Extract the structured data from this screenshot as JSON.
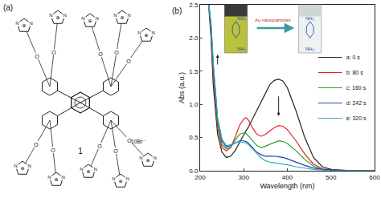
{
  "chart_data": {
    "type": "line",
    "annotations": {
      "panel_label": "(b)",
      "before": [
        "NO₂",
        "NH₂"
      ],
      "process": "Au nanoparticles",
      "after": [
        "NH₂",
        "NH₂"
      ]
    },
    "x_label": "Wavelength (nm)",
    "y_label": "Abs (a.u.)",
    "x": [
      220,
      225,
      230,
      240,
      250,
      260,
      270,
      280,
      290,
      300,
      305,
      310,
      320,
      330,
      340,
      350,
      360,
      370,
      380,
      390,
      400,
      420,
      440,
      460,
      480,
      500,
      550,
      600
    ],
    "series": [
      {
        "name": "a: 0 s",
        "color": "#222222",
        "values": [
          2.45,
          2.0,
          1.3,
          0.55,
          0.28,
          0.2,
          0.22,
          0.3,
          0.42,
          0.55,
          0.6,
          0.65,
          0.78,
          0.92,
          1.05,
          1.18,
          1.3,
          1.36,
          1.38,
          1.35,
          1.25,
          0.9,
          0.5,
          0.2,
          0.06,
          0.02,
          0.0,
          0.0
        ]
      },
      {
        "name": "b: 80 s",
        "color": "#e8202a",
        "values": [
          2.5,
          2.1,
          1.45,
          0.65,
          0.35,
          0.3,
          0.35,
          0.5,
          0.68,
          0.78,
          0.8,
          0.77,
          0.65,
          0.55,
          0.52,
          0.55,
          0.6,
          0.65,
          0.68,
          0.67,
          0.62,
          0.45,
          0.25,
          0.1,
          0.03,
          0.01,
          0.0,
          0.0
        ]
      },
      {
        "name": "c: 160 s",
        "color": "#2ca02c",
        "values": [
          2.5,
          2.15,
          1.55,
          0.72,
          0.4,
          0.33,
          0.36,
          0.45,
          0.55,
          0.57,
          0.56,
          0.53,
          0.45,
          0.38,
          0.35,
          0.37,
          0.4,
          0.43,
          0.45,
          0.44,
          0.41,
          0.3,
          0.17,
          0.07,
          0.02,
          0.01,
          0.0,
          0.0
        ]
      },
      {
        "name": "d: 242 s",
        "color": "#2040c0",
        "values": [
          2.5,
          2.2,
          1.6,
          0.78,
          0.45,
          0.36,
          0.38,
          0.42,
          0.45,
          0.45,
          0.44,
          0.42,
          0.35,
          0.28,
          0.24,
          0.22,
          0.22,
          0.22,
          0.21,
          0.2,
          0.18,
          0.13,
          0.08,
          0.04,
          0.02,
          0.01,
          0.0,
          0.0
        ]
      },
      {
        "name": "e: 320 s",
        "color": "#30b0b8",
        "values": [
          2.5,
          2.22,
          1.65,
          0.8,
          0.48,
          0.38,
          0.39,
          0.42,
          0.44,
          0.43,
          0.42,
          0.4,
          0.33,
          0.25,
          0.19,
          0.15,
          0.13,
          0.12,
          0.11,
          0.1,
          0.09,
          0.06,
          0.04,
          0.02,
          0.01,
          0.0,
          0.0,
          0.0
        ]
      }
    ],
    "xlim": [
      200,
      600
    ],
    "xticks": [
      200,
      300,
      400,
      500,
      600
    ],
    "ylim": [
      0,
      2.5
    ],
    "yticks": [
      {
        "value": 0,
        "label": "0.0"
      },
      0.5,
      {
        "value": 1,
        "label": "1.0"
      },
      1.5,
      {
        "value": 2,
        "label": "2.0"
      },
      2.5
    ],
    "legend": "right",
    "grid": false
  },
  "structure": {
    "panel_label": "(a)",
    "compound": "1",
    "counterion": "10Br⁻",
    "nitrogen": "N",
    "oxygen": "O",
    "cation": "⊕"
  }
}
